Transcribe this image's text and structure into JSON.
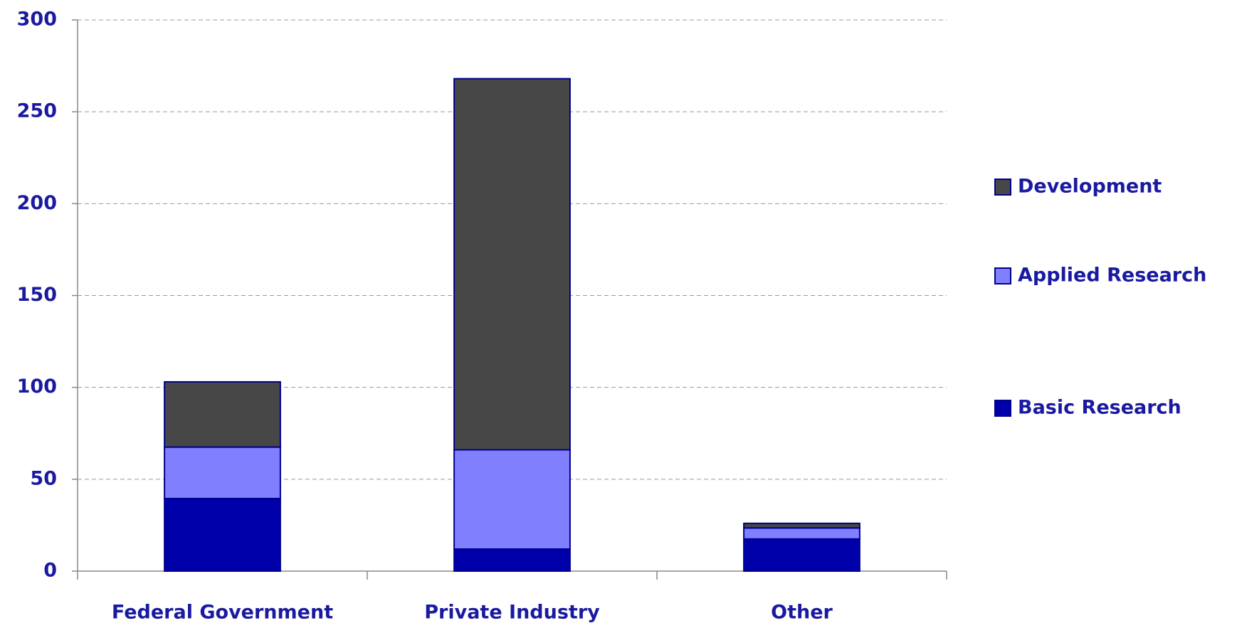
{
  "chart_data": {
    "type": "stacked-bar",
    "categories": [
      "Federal Government",
      "Private Industry",
      "Other"
    ],
    "series": [
      {
        "name": "Basic Research",
        "color": "#0000aa",
        "values": [
          39.5,
          12,
          17.5
        ]
      },
      {
        "name": "Applied Research",
        "color": "#8080ff",
        "values": [
          28,
          54,
          6
        ]
      },
      {
        "name": "Development",
        "color": "#474747",
        "values": [
          35.5,
          202,
          2.5
        ]
      }
    ],
    "ylim": [
      0,
      300
    ],
    "yticks": [
      0,
      50,
      100,
      150,
      200,
      250,
      300
    ],
    "grid": true,
    "legend": "right"
  }
}
